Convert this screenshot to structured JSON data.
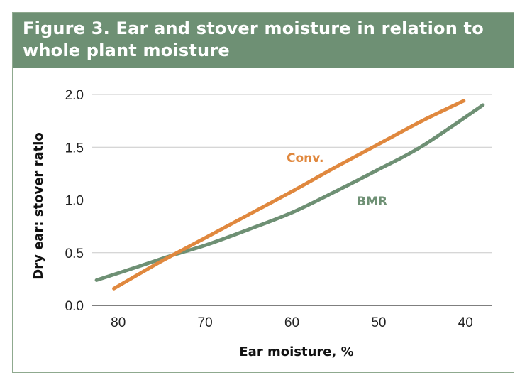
{
  "title": "Figure 3. Ear and stover moisture in relation to whole plant moisture",
  "chart_data": {
    "type": "line",
    "xlabel": "Ear moisture, %",
    "ylabel": "Dry ear: stover ratio",
    "xlim": [
      83,
      37
    ],
    "ylim": [
      0,
      2.0
    ],
    "x_ticks": [
      "80",
      "70",
      "60",
      "50",
      "40"
    ],
    "y_ticks": [
      "0.0",
      "0.5",
      "1.0",
      "1.5",
      "2.0"
    ],
    "grid": "horizontal",
    "legend": "inline labels",
    "series": [
      {
        "name": "Conv.",
        "color": "#e0883e",
        "x": [
          80.5,
          75,
          70,
          65,
          60,
          55,
          50,
          45,
          40.2
        ],
        "y": [
          0.16,
          0.42,
          0.64,
          0.86,
          1.08,
          1.31,
          1.53,
          1.75,
          1.94
        ]
      },
      {
        "name": "BMR",
        "color": "#6e9074",
        "x": [
          82.5,
          78,
          74,
          70,
          65,
          60,
          55,
          50,
          45,
          38
        ],
        "y": [
          0.24,
          0.36,
          0.47,
          0.57,
          0.72,
          0.88,
          1.08,
          1.29,
          1.51,
          1.9
        ]
      }
    ]
  }
}
